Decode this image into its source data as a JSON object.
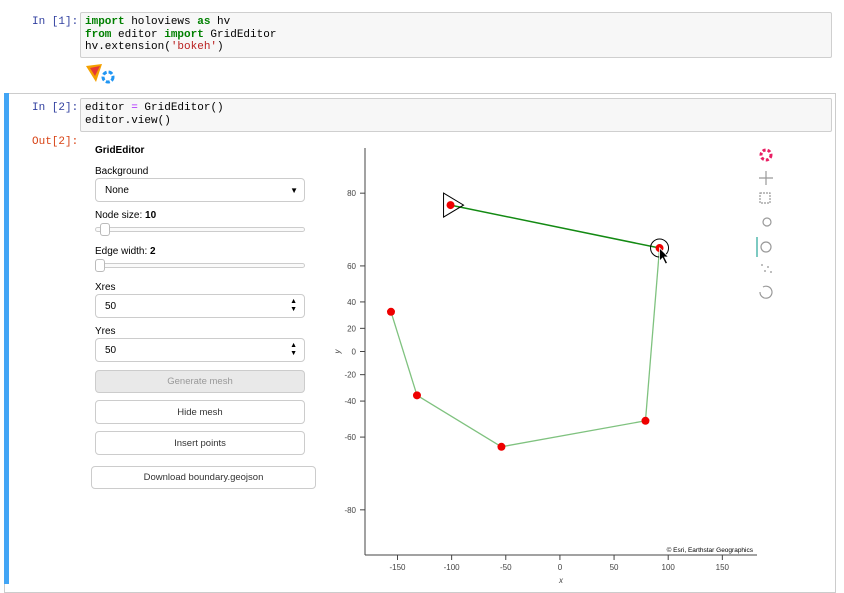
{
  "cells": [
    {
      "prompt": "In [1]:",
      "code": [
        [
          {
            "text": "import",
            "kind": "keyword"
          },
          {
            "text": " holoviews "
          },
          {
            "text": "as",
            "kind": "keyword"
          },
          {
            "text": " hv"
          }
        ],
        [
          {
            "text": "from",
            "kind": "keyword"
          },
          {
            "text": " editor "
          },
          {
            "text": "import",
            "kind": "keyword"
          },
          {
            "text": " GridEditor"
          }
        ],
        [
          {
            "text": "hv.extension("
          },
          {
            "text": "'bokeh'",
            "kind": "string"
          },
          {
            "text": ")"
          }
        ]
      ]
    },
    {
      "prompt": "In [2]:",
      "out_prompt": "Out[2]:",
      "code": [
        [
          {
            "text": "editor "
          },
          {
            "text": "=",
            "kind": "operator"
          },
          {
            "text": " GridEditor()"
          }
        ],
        [
          {
            "text": "editor.view()"
          }
        ]
      ]
    }
  ],
  "widgets": {
    "title": "GridEditor",
    "background_label": "Background",
    "background_value": "None",
    "node_size_label": "Node size: ",
    "node_size": 10,
    "edge_width_label": "Edge width: ",
    "edge_width": 2,
    "xres_label": "Xres",
    "xres": 50,
    "yres_label": "Yres",
    "yres": 50,
    "buttons": [
      "Generate mesh",
      "Hide mesh",
      "Insert points"
    ],
    "download": "Download boundary.geojson"
  },
  "plot": {
    "xlabel": "x",
    "ylabel": "y",
    "attribution": "© Esri, Earthstar Geographics",
    "xlim": [
      -180,
      182
    ],
    "ylim": [
      -85,
      85
    ],
    "yscale": "mercator",
    "xticks": [
      -150,
      -100,
      -50,
      0,
      50,
      100,
      150
    ],
    "yticks": [
      -80,
      -60,
      -40,
      -20,
      0,
      20,
      40,
      60,
      80
    ],
    "points": {
      "color": "#ee0000",
      "x": [
        -101,
        92,
        79,
        -54,
        -132,
        -156
      ],
      "y": [
        78,
        67,
        -52,
        -64,
        -36,
        33
      ]
    },
    "selected_edge_color": "#138a13",
    "edge_color": "#7fc27f"
  }
}
